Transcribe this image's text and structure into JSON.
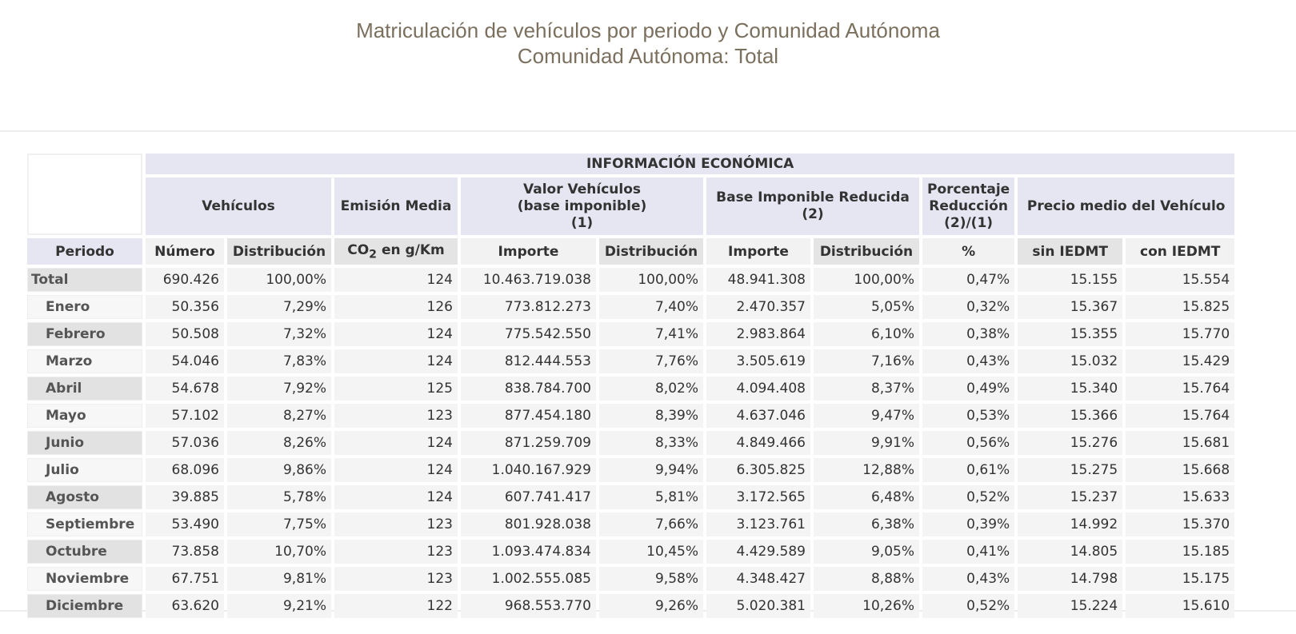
{
  "title": {
    "line1": "Matriculación de vehículos por periodo y Comunidad Autónoma",
    "line2": "Comunidad Autónoma: Total"
  },
  "headers": {
    "group": "INFORMACIÓN ECONÓMICA",
    "vehiculos": "Vehículos",
    "emision": "Emisión Media",
    "valor": [
      "Valor Vehículos",
      "(base imponible)",
      "(1)"
    ],
    "base": [
      "Base Imponible Reducida",
      "(2)"
    ],
    "porcentaje": [
      "Porcentaje",
      "Reducción",
      "(2)/(1)"
    ],
    "precio": "Precio medio del Vehículo",
    "periodo": "Periodo",
    "numero": "Número",
    "distribucion": "Distribución",
    "co2_prefix": "CO",
    "co2_sub": "2",
    "co2_suffix": " en g/Km",
    "importe": "Importe",
    "pct": "%",
    "sin": "sin IEDMT",
    "con": "con IEDMT"
  },
  "rows": [
    [
      "Total",
      "690.426",
      "100,00%",
      "124",
      "10.463.719.038",
      "100,00%",
      "48.941.308",
      "100,00%",
      "0,47%",
      "15.155",
      "15.554"
    ],
    [
      "Enero",
      "50.356",
      "7,29%",
      "126",
      "773.812.273",
      "7,40%",
      "2.470.357",
      "5,05%",
      "0,32%",
      "15.367",
      "15.825"
    ],
    [
      "Febrero",
      "50.508",
      "7,32%",
      "124",
      "775.542.550",
      "7,41%",
      "2.983.864",
      "6,10%",
      "0,38%",
      "15.355",
      "15.770"
    ],
    [
      "Marzo",
      "54.046",
      "7,83%",
      "124",
      "812.444.553",
      "7,76%",
      "3.505.619",
      "7,16%",
      "0,43%",
      "15.032",
      "15.429"
    ],
    [
      "Abril",
      "54.678",
      "7,92%",
      "125",
      "838.784.700",
      "8,02%",
      "4.094.408",
      "8,37%",
      "0,49%",
      "15.340",
      "15.764"
    ],
    [
      "Mayo",
      "57.102",
      "8,27%",
      "123",
      "877.454.180",
      "8,39%",
      "4.637.046",
      "9,47%",
      "0,53%",
      "15.366",
      "15.764"
    ],
    [
      "Junio",
      "57.036",
      "8,26%",
      "124",
      "871.259.709",
      "8,33%",
      "4.849.466",
      "9,91%",
      "0,56%",
      "15.276",
      "15.681"
    ],
    [
      "Julio",
      "68.096",
      "9,86%",
      "124",
      "1.040.167.929",
      "9,94%",
      "6.305.825",
      "12,88%",
      "0,61%",
      "15.275",
      "15.668"
    ],
    [
      "Agosto",
      "39.885",
      "5,78%",
      "124",
      "607.741.417",
      "5,81%",
      "3.172.565",
      "6,48%",
      "0,52%",
      "15.237",
      "15.633"
    ],
    [
      "Septiembre",
      "53.490",
      "7,75%",
      "123",
      "801.928.038",
      "7,66%",
      "3.123.761",
      "6,38%",
      "0,39%",
      "14.992",
      "15.370"
    ],
    [
      "Octubre",
      "73.858",
      "10,70%",
      "123",
      "1.093.474.834",
      "10,45%",
      "4.429.589",
      "9,05%",
      "0,41%",
      "14.805",
      "15.185"
    ],
    [
      "Noviembre",
      "67.751",
      "9,81%",
      "123",
      "1.002.555.085",
      "9,58%",
      "4.348.427",
      "8,88%",
      "0,43%",
      "14.798",
      "15.175"
    ],
    [
      "Diciembre",
      "63.620",
      "9,21%",
      "122",
      "968.553.770",
      "9,26%",
      "5.020.381",
      "10,26%",
      "0,52%",
      "15.224",
      "15.610"
    ]
  ]
}
